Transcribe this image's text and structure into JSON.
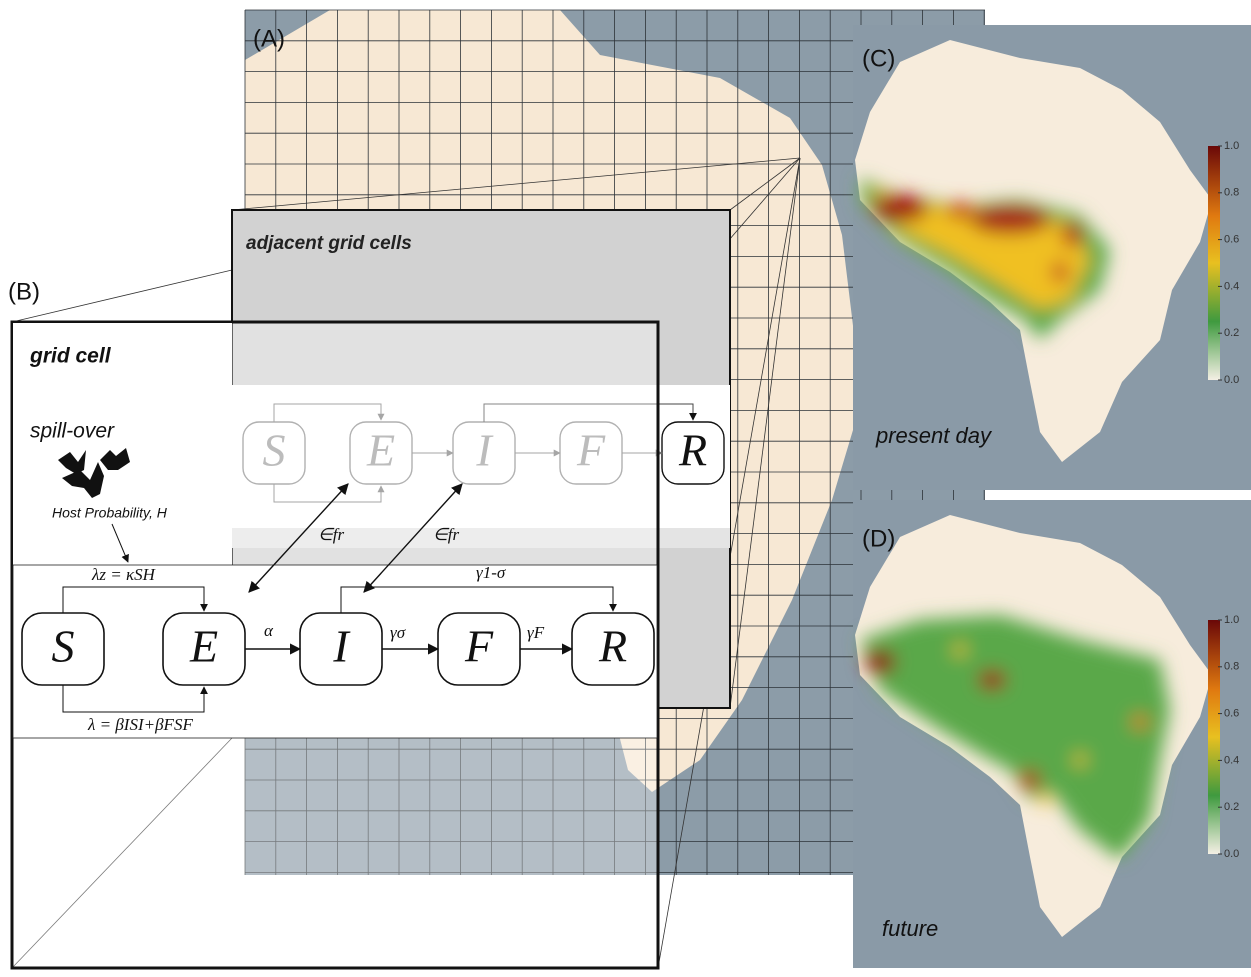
{
  "panel_a": {
    "label": "(A)"
  },
  "panel_b": {
    "label": "(B)",
    "adjacent_title": "adjacent grid cells",
    "cell_title": "grid cell",
    "spillover": "spill-over",
    "host_probability": "Host Probability, H",
    "adjacent_compartments": [
      "S",
      "E",
      "I",
      "F",
      "R"
    ],
    "compartments": [
      "S",
      "E",
      "I",
      "F",
      "R"
    ],
    "coupling": [
      "∈fr",
      "∈fr"
    ],
    "rates": {
      "lambda_z": "λz = κSH",
      "lambda": "λ = βISI+βFSF",
      "alpha": "α",
      "gamma_sigma": "γσ",
      "gamma_f": "γF",
      "gamma_1_sigma": "γ1-σ"
    }
  },
  "panel_c": {
    "label": "(C)",
    "caption": "present day",
    "colorbar_labels": [
      "1.0",
      "0.8",
      "0.6",
      "0.4",
      "0.2",
      "0.0"
    ]
  },
  "panel_d": {
    "label": "(D)",
    "caption": "future",
    "colorbar_labels": [
      "1.0",
      "0.8",
      "0.6",
      "0.4",
      "0.2",
      "0.0"
    ]
  }
}
